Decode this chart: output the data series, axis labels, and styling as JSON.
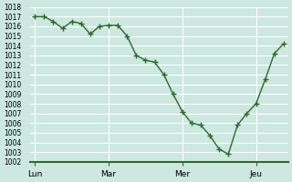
{
  "title": "",
  "background_color": "#cce8e0",
  "grid_color": "#ffffff",
  "line_color": "#2d6a2d",
  "marker_color": "#2d6a2d",
  "ylabel": "",
  "xlabel": "",
  "ylim": [
    1002,
    1018
  ],
  "ytick_step": 1,
  "x_tick_labels": [
    "Lun",
    "Mar",
    "Mer",
    "Jeu"
  ],
  "x_tick_positions": [
    0,
    8,
    16,
    24
  ],
  "x_values": [
    0,
    1,
    2,
    3,
    4,
    5,
    6,
    7,
    8,
    9,
    10,
    11,
    12,
    13,
    14,
    15,
    16,
    17,
    18,
    19,
    20,
    21,
    22,
    23,
    24,
    25,
    26,
    27
  ],
  "y_values": [
    1017,
    1017,
    1016.5,
    1015.8,
    1016.5,
    1016.3,
    1015.2,
    1016.0,
    1016.1,
    1016.1,
    1015.0,
    1013.0,
    1012.5,
    1012.3,
    1011.0,
    1009.0,
    1007.2,
    1006.0,
    1005.8,
    1004.7,
    1003.3,
    1002.8,
    1005.8,
    1007.0,
    1008.0,
    1010.5,
    1013.2,
    1014.2
  ]
}
